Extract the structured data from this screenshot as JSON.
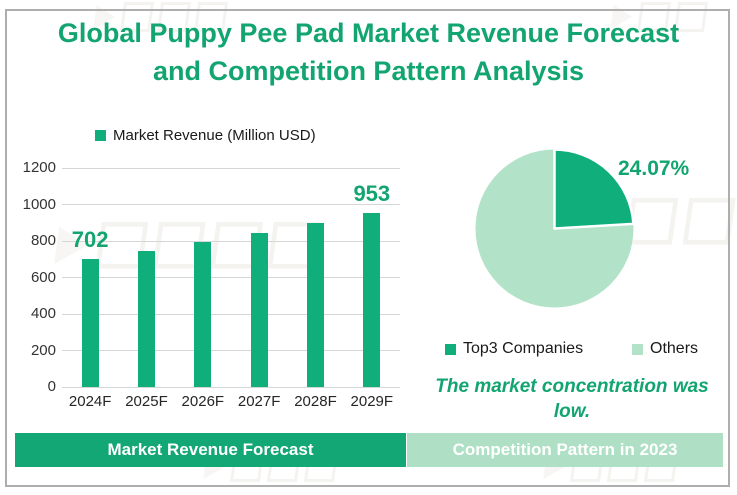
{
  "title": {
    "line1": "Global Puppy Pee Pad Market Revenue Forecast",
    "line2": "and Competition Pattern Analysis"
  },
  "colors": {
    "accent_green": "#12A471",
    "bar_green": "#0FAE7B",
    "pie_light_green": "#B2E2C8",
    "banner_dark_green": "#12A774",
    "banner_light_green": "#AFDFC4",
    "gridline_gray": "#D6D6D6",
    "border_gray": "#AEAEAE",
    "axis_text": "#333333",
    "banner_text": "#FFFFFF"
  },
  "chart_data": [
    {
      "type": "bar",
      "legend": "Market Revenue (Million USD)",
      "legend_position": "top",
      "categories": [
        "2024F",
        "2025F",
        "2026F",
        "2027F",
        "2028F",
        "2029F"
      ],
      "values": [
        702,
        745,
        792,
        843,
        897,
        953
      ],
      "data_labels": {
        "2024F": "702",
        "2029F": "953"
      },
      "ylim": [
        0,
        1200
      ],
      "yticks": [
        0,
        200,
        400,
        600,
        800,
        1000,
        1200
      ],
      "grid": true,
      "bar_color": "#0FAE7B"
    },
    {
      "type": "pie",
      "labels": [
        "Top3 Companies",
        "Others"
      ],
      "values": [
        24.07,
        75.93
      ],
      "slice_colors": [
        "#0FAE7B",
        "#B2E2C8"
      ],
      "data_label": "24.07%",
      "legend_position": "bottom",
      "start_angle_deg": 0,
      "direction": "clockwise"
    }
  ],
  "annotation": {
    "text": "The market concentration was low."
  },
  "footer": {
    "left_banner": "Market Revenue Forecast",
    "right_banner": "Competition Pattern in 2023"
  }
}
